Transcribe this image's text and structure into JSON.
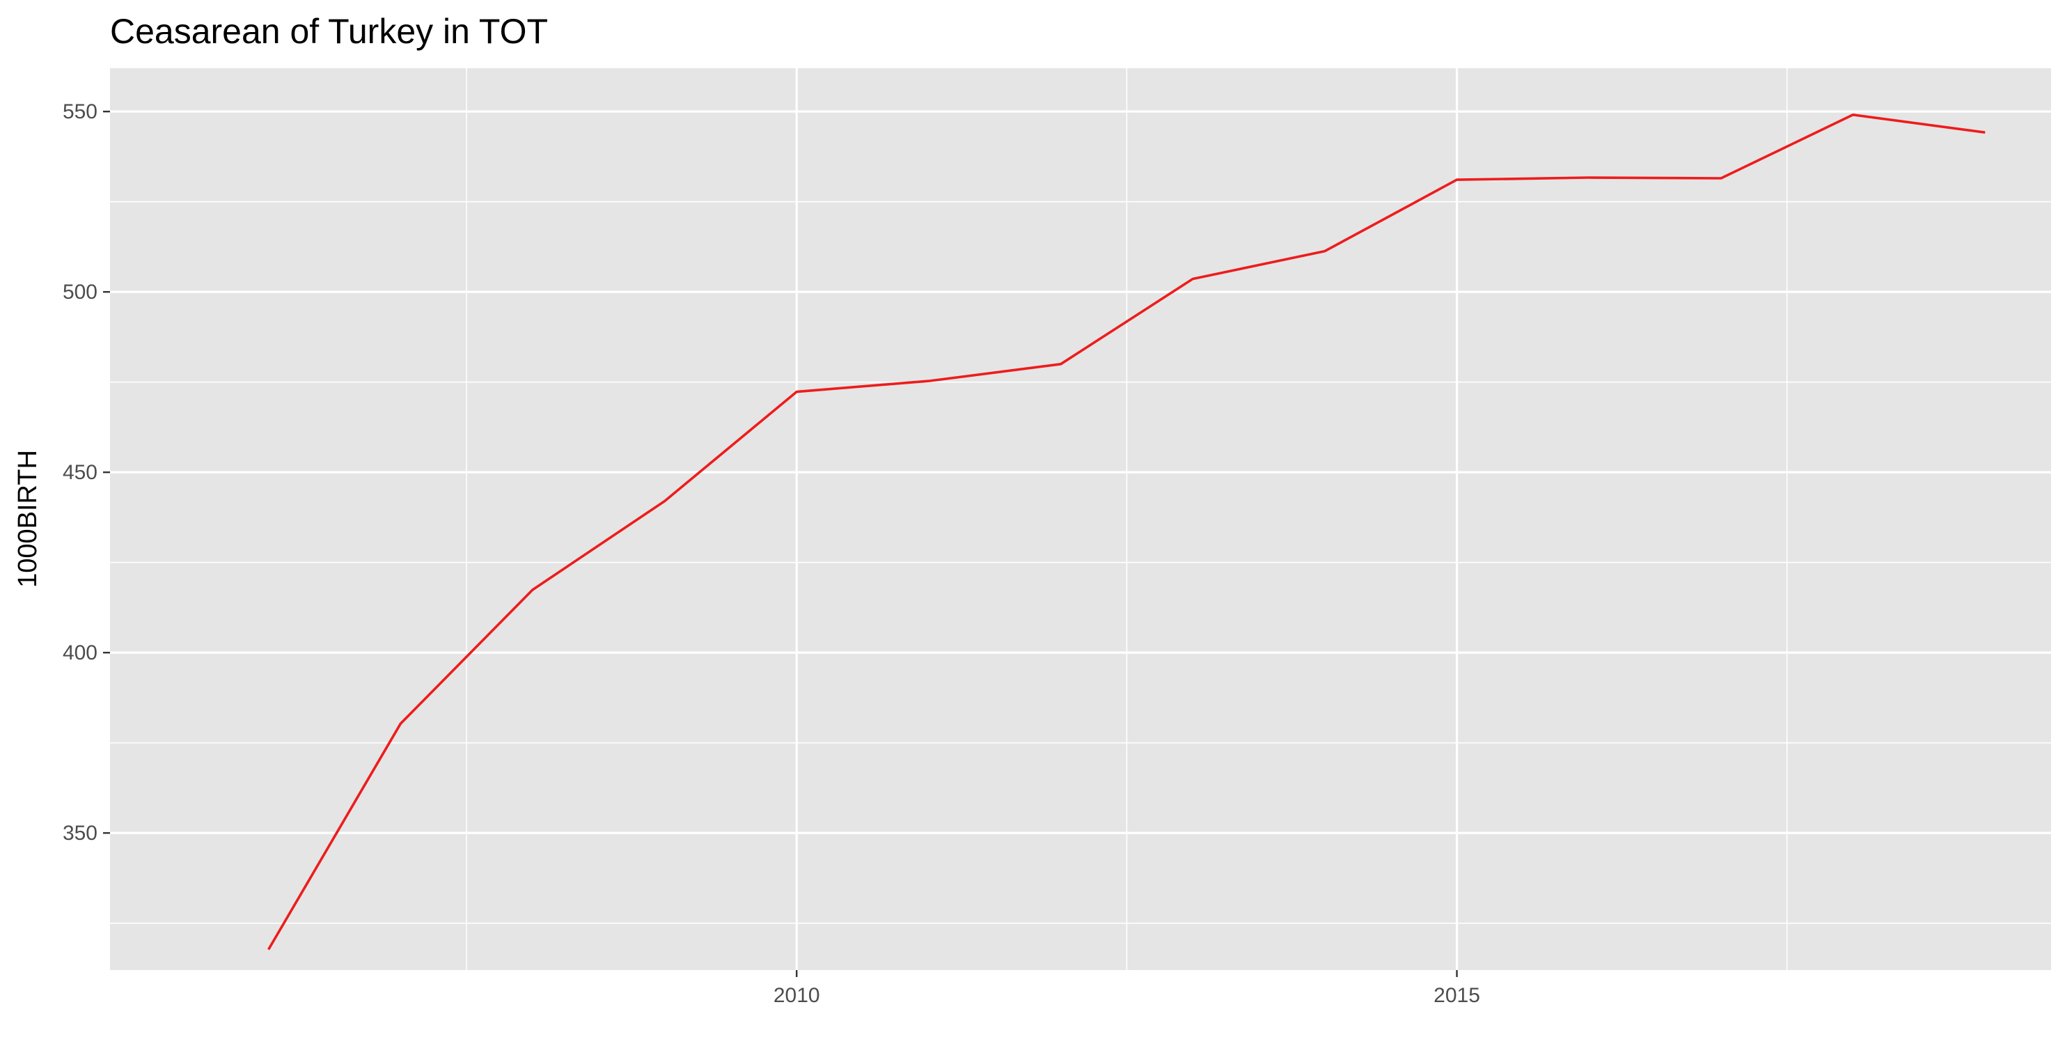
{
  "chart_data": {
    "type": "line",
    "title": "Ceasarean of Turkey in TOT",
    "xlabel": "",
    "ylabel": "1000BIRTH",
    "x": [
      2006,
      2007,
      2008,
      2009,
      2010,
      2011,
      2012,
      2013,
      2014,
      2015,
      2016,
      2017,
      2018,
      2019
    ],
    "series": [
      {
        "values": [
          317.7,
          380.3,
          417.4,
          442.0,
          472.3,
          475.3,
          480.0,
          503.6,
          511.3,
          531.1,
          531.7,
          531.5,
          549.1,
          544.2
        ],
        "color": "#ee1c1c"
      }
    ],
    "xlim": [
      2004.8,
      2019.5
    ],
    "ylim": [
      312,
      562
    ],
    "x_ticks": [
      2010,
      2015
    ],
    "x_tick_labels": [
      "2010",
      "2015"
    ],
    "y_ticks": [
      350,
      400,
      450,
      500,
      550
    ],
    "y_tick_labels": [
      "350",
      "400",
      "450",
      "500",
      "550"
    ],
    "x_minor_ticks": [
      2007.5,
      2012.5,
      2017.5
    ],
    "y_minor_ticks": [
      325,
      375,
      425,
      475,
      525
    ],
    "grid": true,
    "legend": "none",
    "panel_color": "#e5e5e5",
    "grid_color": "#ffffff"
  }
}
